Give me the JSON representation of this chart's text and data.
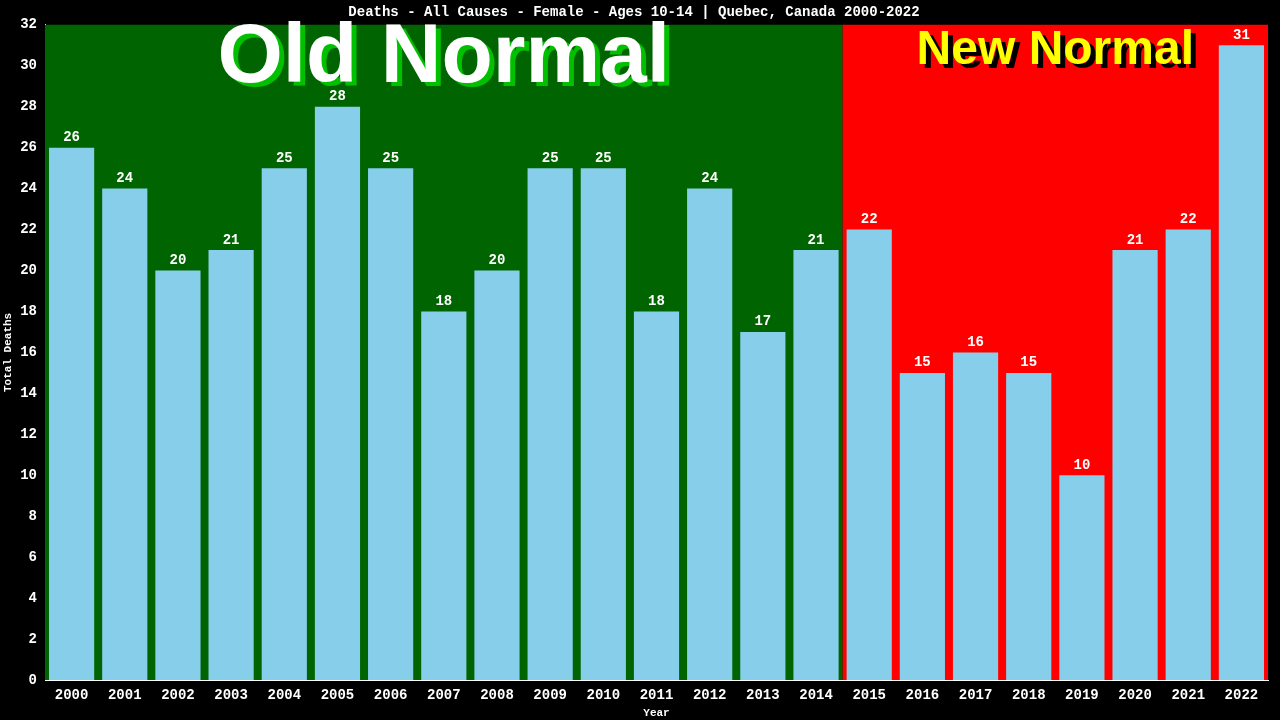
{
  "chart_data": {
    "type": "bar",
    "title": "Deaths - All Causes - Female - Ages 10-14 | Quebec, Canada 2000-2022",
    "xlabel": "Year",
    "ylabel": "Total Deaths",
    "categories": [
      "2000",
      "2001",
      "2002",
      "2003",
      "2004",
      "2005",
      "2006",
      "2007",
      "2008",
      "2009",
      "2010",
      "2011",
      "2012",
      "2013",
      "2014",
      "2015",
      "2016",
      "2017",
      "2018",
      "2019",
      "2020",
      "2021",
      "2022"
    ],
    "values": [
      26,
      24,
      20,
      21,
      25,
      28,
      25,
      18,
      20,
      25,
      25,
      18,
      24,
      17,
      21,
      22,
      15,
      16,
      15,
      10,
      21,
      22,
      31
    ],
    "color": "#87ceeb",
    "ylim": [
      0,
      32
    ],
    "yticks": [
      0,
      2,
      4,
      6,
      8,
      10,
      12,
      14,
      16,
      18,
      20,
      22,
      24,
      26,
      28,
      30,
      32
    ],
    "grid": false,
    "legend": false,
    "data_labels": true,
    "bands": [
      {
        "axis": "x",
        "from": "2000",
        "to": "2014",
        "label": "Old Normal",
        "color": "#006400"
      },
      {
        "axis": "x",
        "from": "2015",
        "to": "2022",
        "label": "New Normal",
        "color": "#ff0000"
      }
    ]
  }
}
